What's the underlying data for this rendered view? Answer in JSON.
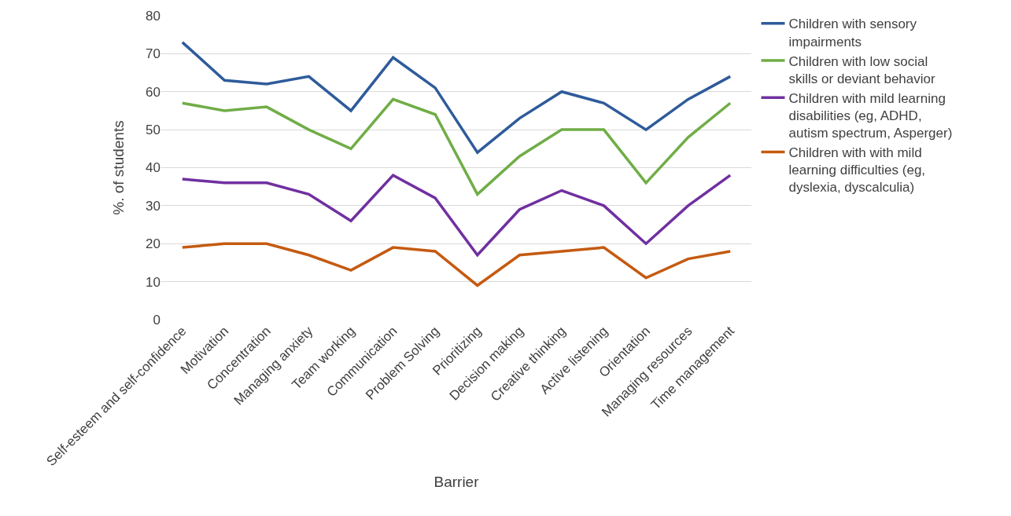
{
  "chart_data": {
    "type": "line",
    "xlabel": "Barrier",
    "ylabel": "%. of students",
    "categories": [
      "Self-esteem and self-confidence",
      "Motivation",
      "Concentration",
      "Managing anxiety",
      "Team working",
      "Communication",
      "Problem Solving",
      "Prioritizing",
      "Decision making",
      "Creative thinking",
      "Active listening",
      "Orientation",
      "Managing resources",
      "Time management"
    ],
    "series": [
      {
        "name": "Children with sensory impairments",
        "color": "#2e5b9a",
        "values": [
          73,
          63,
          62,
          64,
          55,
          69,
          61,
          44,
          53,
          60,
          57,
          50,
          58,
          64
        ]
      },
      {
        "name": "Children with low social skills or deviant behavior",
        "color": "#70ad47",
        "values": [
          57,
          55,
          56,
          50,
          45,
          58,
          54,
          33,
          43,
          50,
          50,
          36,
          48,
          57
        ]
      },
      {
        "name": "Children with mild learning disabilities (eg, ADHD, autism spectrum, Asperger)",
        "color": "#7030a0",
        "values": [
          37,
          36,
          36,
          33,
          26,
          38,
          32,
          17,
          29,
          34,
          30,
          20,
          30,
          38
        ]
      },
      {
        "name": "Children with with mild learning difficulties (eg, dyslexia, dyscalculia)",
        "color": "#c55a11",
        "values": [
          19,
          20,
          20,
          17,
          13,
          19,
          18,
          9,
          17,
          18,
          19,
          11,
          16,
          18
        ]
      }
    ],
    "ylim": [
      0,
      80
    ],
    "yticks": [
      0,
      10,
      20,
      30,
      40,
      50,
      60,
      70,
      80
    ],
    "grid": "y",
    "legend": "right",
    "marker": "none",
    "line_style": "solid"
  }
}
